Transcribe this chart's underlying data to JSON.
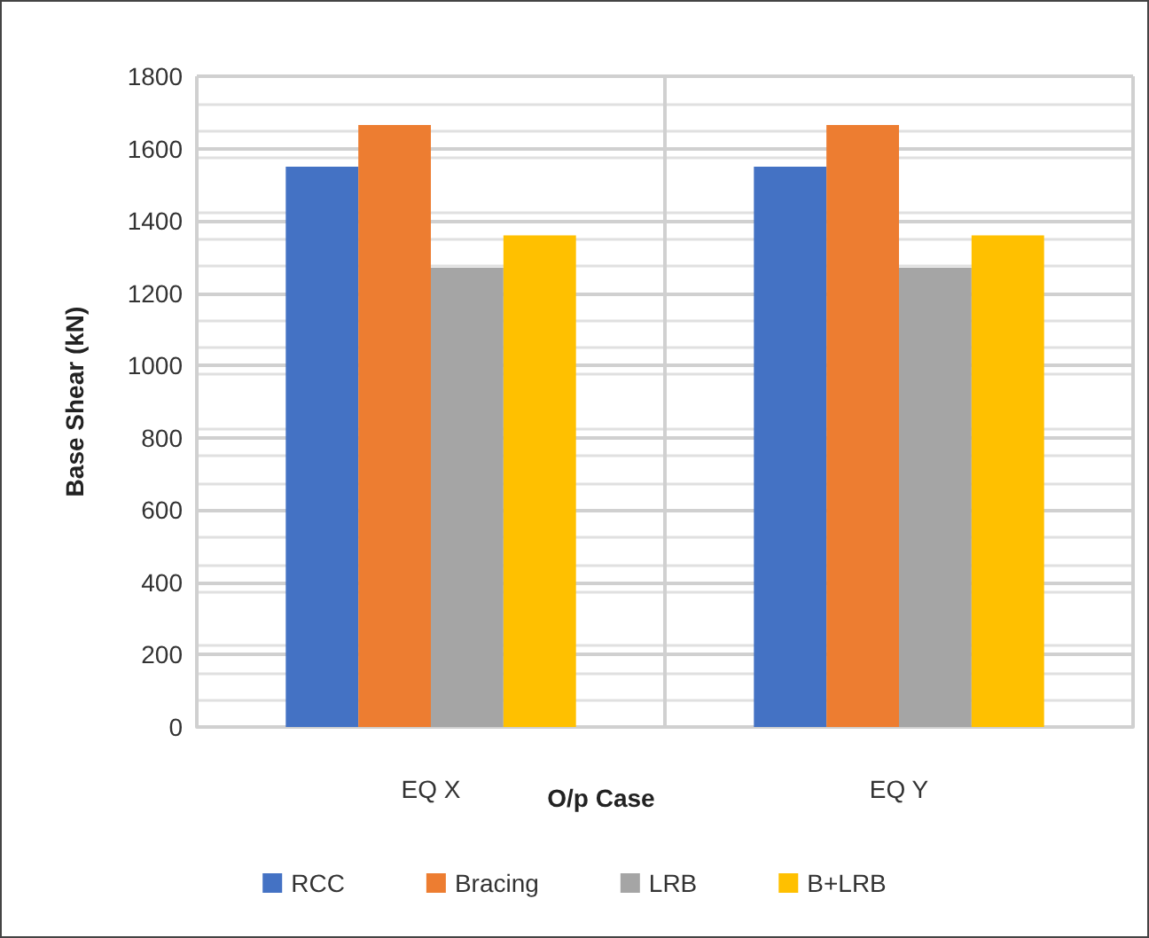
{
  "chart_data": {
    "type": "bar",
    "xlabel": "O/p Case",
    "ylabel": "Base Shear (kN)",
    "categories": [
      "EQ X",
      "EQ Y"
    ],
    "series": [
      {
        "name": "RCC",
        "color": "#4472c4",
        "values": [
          1550,
          1550
        ]
      },
      {
        "name": "Bracing",
        "color": "#ed7d31",
        "values": [
          1665,
          1665
        ]
      },
      {
        "name": "LRB",
        "color": "#a5a5a5",
        "values": [
          1270,
          1270
        ]
      },
      {
        "name": "B+LRB",
        "color": "#ffc000",
        "values": [
          1360,
          1360
        ]
      }
    ],
    "ylim": [
      0,
      1800
    ],
    "yticks": [
      0,
      200,
      400,
      600,
      800,
      1000,
      1200,
      1400,
      1600,
      1800
    ],
    "grid": true,
    "legend": "bottom"
  }
}
